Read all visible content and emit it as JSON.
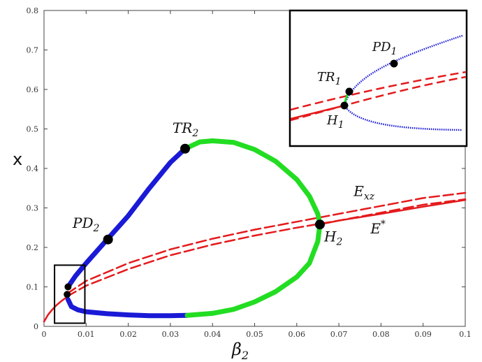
{
  "chart_data": {
    "type": "line",
    "xlabel": "β",
    "xlabel_sub": "2",
    "ylabel": "x",
    "xlim": [
      0,
      0.1
    ],
    "ylim": [
      0,
      0.8
    ],
    "xticks": [
      "0",
      "0.01",
      "0.02",
      "0.03",
      "0.04",
      "0.05",
      "0.06",
      "0.07",
      "0.08",
      "0.09",
      "0.1"
    ],
    "yticks": [
      "0",
      "0.1",
      "0.2",
      "0.3",
      "0.4",
      "0.5",
      "0.6",
      "0.7",
      "0.8"
    ],
    "grid": false,
    "colors": {
      "stable_equilibrium": "#e41a1c",
      "stable_cycle": "#1a1ad6",
      "unstable_cycle": "#22dd22",
      "point": "#000000"
    },
    "series": [
      {
        "role": "E_xz_upper",
        "style": "dashed",
        "color": "#e41a1c",
        "x": [
          0.0055,
          0.01,
          0.02,
          0.03,
          0.04,
          0.05,
          0.06,
          0.07,
          0.08,
          0.09,
          0.1
        ],
        "y": [
          0.083,
          0.115,
          0.16,
          0.195,
          0.222,
          0.245,
          0.265,
          0.285,
          0.305,
          0.325,
          0.338
        ]
      },
      {
        "role": "E_xz_lower",
        "style": "dashed",
        "color": "#e41a1c",
        "x": [
          0.0055,
          0.01,
          0.02,
          0.03,
          0.04,
          0.05,
          0.06,
          0.07,
          0.08,
          0.09,
          0.1
        ],
        "y": [
          0.076,
          0.103,
          0.145,
          0.18,
          0.207,
          0.23,
          0.25,
          0.268,
          0.288,
          0.308,
          0.322
        ]
      },
      {
        "role": "E_star_stable",
        "style": "solid",
        "color": "#e41a1c",
        "x": [
          0,
          0.001,
          0.002,
          0.003,
          0.004,
          0.005,
          0.0055
        ],
        "y": [
          0.012,
          0.03,
          0.043,
          0.054,
          0.063,
          0.071,
          0.075
        ]
      },
      {
        "role": "E_star_stable_right",
        "style": "solid",
        "color": "#e41a1c",
        "x": [
          0.0655,
          0.07,
          0.08,
          0.09,
          0.1
        ],
        "y": [
          0.258,
          0.268,
          0.285,
          0.303,
          0.32
        ]
      },
      {
        "role": "cycle_max_stable",
        "style": "solid",
        "color": "#1a1ad6",
        "x": [
          0.0057,
          0.0075,
          0.01,
          0.015,
          0.02,
          0.025,
          0.03,
          0.0335
        ],
        "y": [
          0.1,
          0.128,
          0.16,
          0.22,
          0.28,
          0.35,
          0.415,
          0.45
        ]
      },
      {
        "role": "cycle_max_unstable",
        "style": "solid",
        "color": "#22dd22",
        "x": [
          0.0335,
          0.037,
          0.04,
          0.045,
          0.05,
          0.055,
          0.06,
          0.063,
          0.065,
          0.0655
        ],
        "y": [
          0.45,
          0.467,
          0.47,
          0.466,
          0.448,
          0.418,
          0.372,
          0.33,
          0.285,
          0.258
        ]
      },
      {
        "role": "cycle_min_stable",
        "style": "solid",
        "color": "#1a1ad6",
        "x": [
          0.0057,
          0.0065,
          0.008,
          0.01,
          0.015,
          0.02,
          0.025,
          0.03,
          0.034
        ],
        "y": [
          0.068,
          0.05,
          0.042,
          0.037,
          0.032,
          0.029,
          0.027,
          0.027,
          0.028
        ]
      },
      {
        "role": "cycle_min_unstable",
        "style": "solid",
        "color": "#22dd22",
        "x": [
          0.034,
          0.04,
          0.045,
          0.05,
          0.055,
          0.06,
          0.063,
          0.065,
          0.0655
        ],
        "y": [
          0.028,
          0.033,
          0.043,
          0.062,
          0.088,
          0.125,
          0.16,
          0.215,
          0.258
        ]
      }
    ],
    "points": [
      {
        "label": "TR",
        "sub": "2",
        "x": 0.0335,
        "y": 0.45,
        "size": "large"
      },
      {
        "label": "PD",
        "sub": "2",
        "x": 0.0152,
        "y": 0.22,
        "size": "large"
      },
      {
        "label": "H",
        "sub": "2",
        "x": 0.0655,
        "y": 0.258,
        "size": "large"
      },
      {
        "label": "",
        "sub": "",
        "x": 0.0057,
        "y": 0.1,
        "size": "medium"
      },
      {
        "label": "",
        "sub": "",
        "x": 0.0055,
        "y": 0.081,
        "size": "medium"
      }
    ],
    "annotations": [
      {
        "text": "TR",
        "sub": "2",
        "x": 0.0305,
        "y": 0.49
      },
      {
        "text": "PD",
        "sub": "2",
        "x": 0.0068,
        "y": 0.25
      },
      {
        "text": "H",
        "sub": "2",
        "x": 0.0665,
        "y": 0.215
      },
      {
        "text": "E",
        "sub": "xz",
        "x": 0.0735,
        "y": 0.33
      },
      {
        "text": "E",
        "sup": "*",
        "x": 0.0775,
        "y": 0.235
      }
    ],
    "zoom_box": {
      "xlim": [
        0.0025,
        0.0097
      ],
      "ylim": [
        0.008,
        0.155
      ]
    },
    "inset": {
      "labels": [
        {
          "text": "PD",
          "sub": "1"
        },
        {
          "text": "TR",
          "sub": "1"
        },
        {
          "text": "H",
          "sub": "1"
        }
      ]
    }
  }
}
